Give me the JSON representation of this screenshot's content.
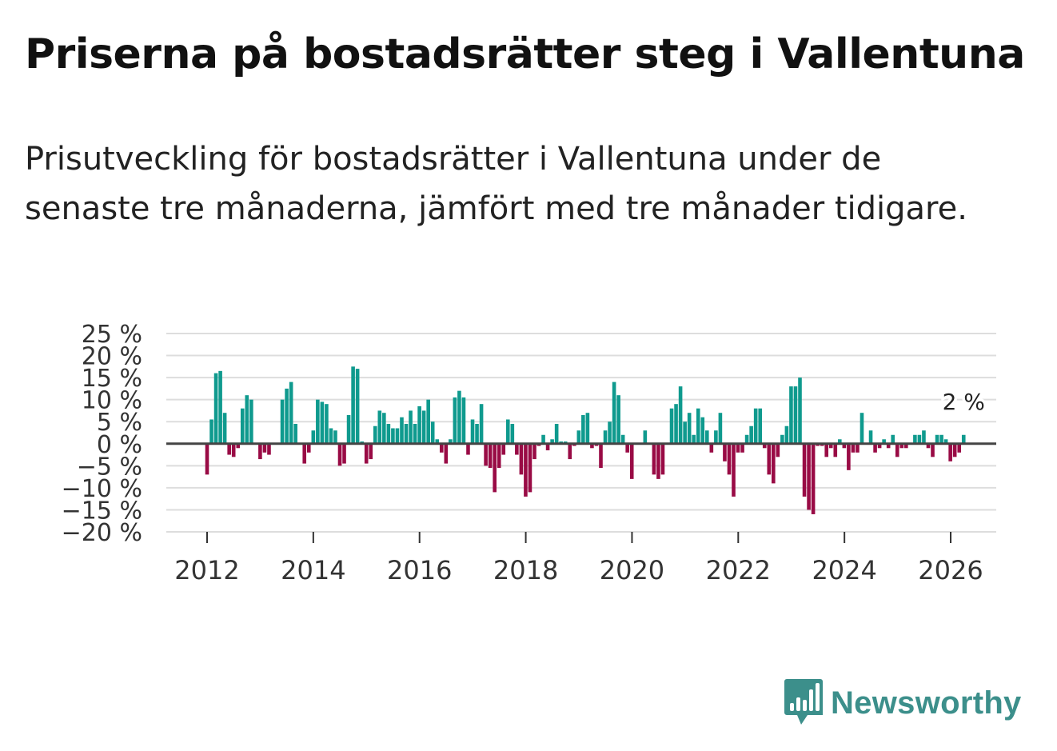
{
  "header": {
    "title": "Priserna på bostadsrätter steg i Vallentuna",
    "subtitle": "Prisutveckling för bostadsrätter i Vallentuna under de senaste tre månaderna, jämfört med tre månader tidigare."
  },
  "chart_data": {
    "type": "bar",
    "ylim": [
      -20,
      25
    ],
    "ytick_values": [
      25,
      20,
      15,
      10,
      5,
      0,
      -5,
      -10,
      -15,
      -20
    ],
    "ytick_labels": [
      "25 %",
      "20 %",
      "15 %",
      "10 %",
      "5 %",
      "0 %",
      "−5 %",
      "−10 %",
      "−15 %",
      "−20 %"
    ],
    "xtick_labels": [
      "2012",
      "2014",
      "2016",
      "2018",
      "2020",
      "2022",
      "2024",
      "2026"
    ],
    "xtick_values": [
      2012,
      2014,
      2016,
      2018,
      2020,
      2022,
      2024,
      2026
    ],
    "x_start": 2012.0,
    "x_step": 0.0833,
    "grid": true,
    "values": [
      -7,
      5.5,
      16,
      16.5,
      7,
      -2.5,
      -3,
      -1,
      8,
      11,
      10,
      0,
      -3.5,
      -2,
      -2.5,
      0,
      0,
      10,
      12.5,
      14,
      4.5,
      0,
      -4.5,
      -2,
      3,
      10,
      9.5,
      9,
      3.5,
      3,
      -5,
      -4.5,
      6.5,
      17.5,
      17,
      0.5,
      -4.5,
      -3.5,
      4,
      7.5,
      7,
      4.5,
      3.5,
      3.5,
      6,
      4.5,
      7.5,
      4.5,
      8.5,
      7.5,
      10,
      5,
      1,
      -2,
      -4.5,
      1,
      10.5,
      12,
      10.5,
      -2.5,
      5.5,
      4.5,
      9,
      -5,
      -5.5,
      -11,
      -5.5,
      -2.5,
      5.5,
      4.5,
      -2.5,
      -7,
      -12,
      -11,
      -3.5,
      -0.5,
      2,
      -1.5,
      1,
      4.5,
      0.5,
      0.5,
      -3.5,
      -0.5,
      3,
      6.5,
      7,
      -1,
      -0.5,
      -5.5,
      3,
      5,
      14,
      11,
      2,
      -2,
      -8,
      0,
      0,
      3,
      0,
      -7,
      -8,
      -7,
      0,
      8,
      9,
      13,
      5,
      7,
      2,
      8,
      6,
      3,
      -2,
      3,
      7,
      -4,
      -7,
      -12,
      -2,
      -2,
      2,
      4,
      8,
      8,
      -1,
      -7,
      -9,
      -3,
      2,
      4,
      13,
      13,
      15,
      -12,
      -15,
      -16,
      -0.5,
      -0.5,
      -3,
      -1,
      -3,
      1,
      -1,
      -6,
      -2,
      -2,
      7,
      0,
      3,
      -2,
      -1,
      1,
      -1,
      2,
      -3,
      -1,
      -1,
      0,
      2,
      2,
      3,
      -1,
      -3,
      2,
      2,
      1,
      -4,
      -3,
      -2,
      2
    ],
    "positive_color": "#0f9a8e",
    "negative_color": "#990b45",
    "zero_line_color": "#444444",
    "grid_color": "#dddddd",
    "annotation": "2 %"
  },
  "brand": {
    "name": "Newsworthy"
  }
}
